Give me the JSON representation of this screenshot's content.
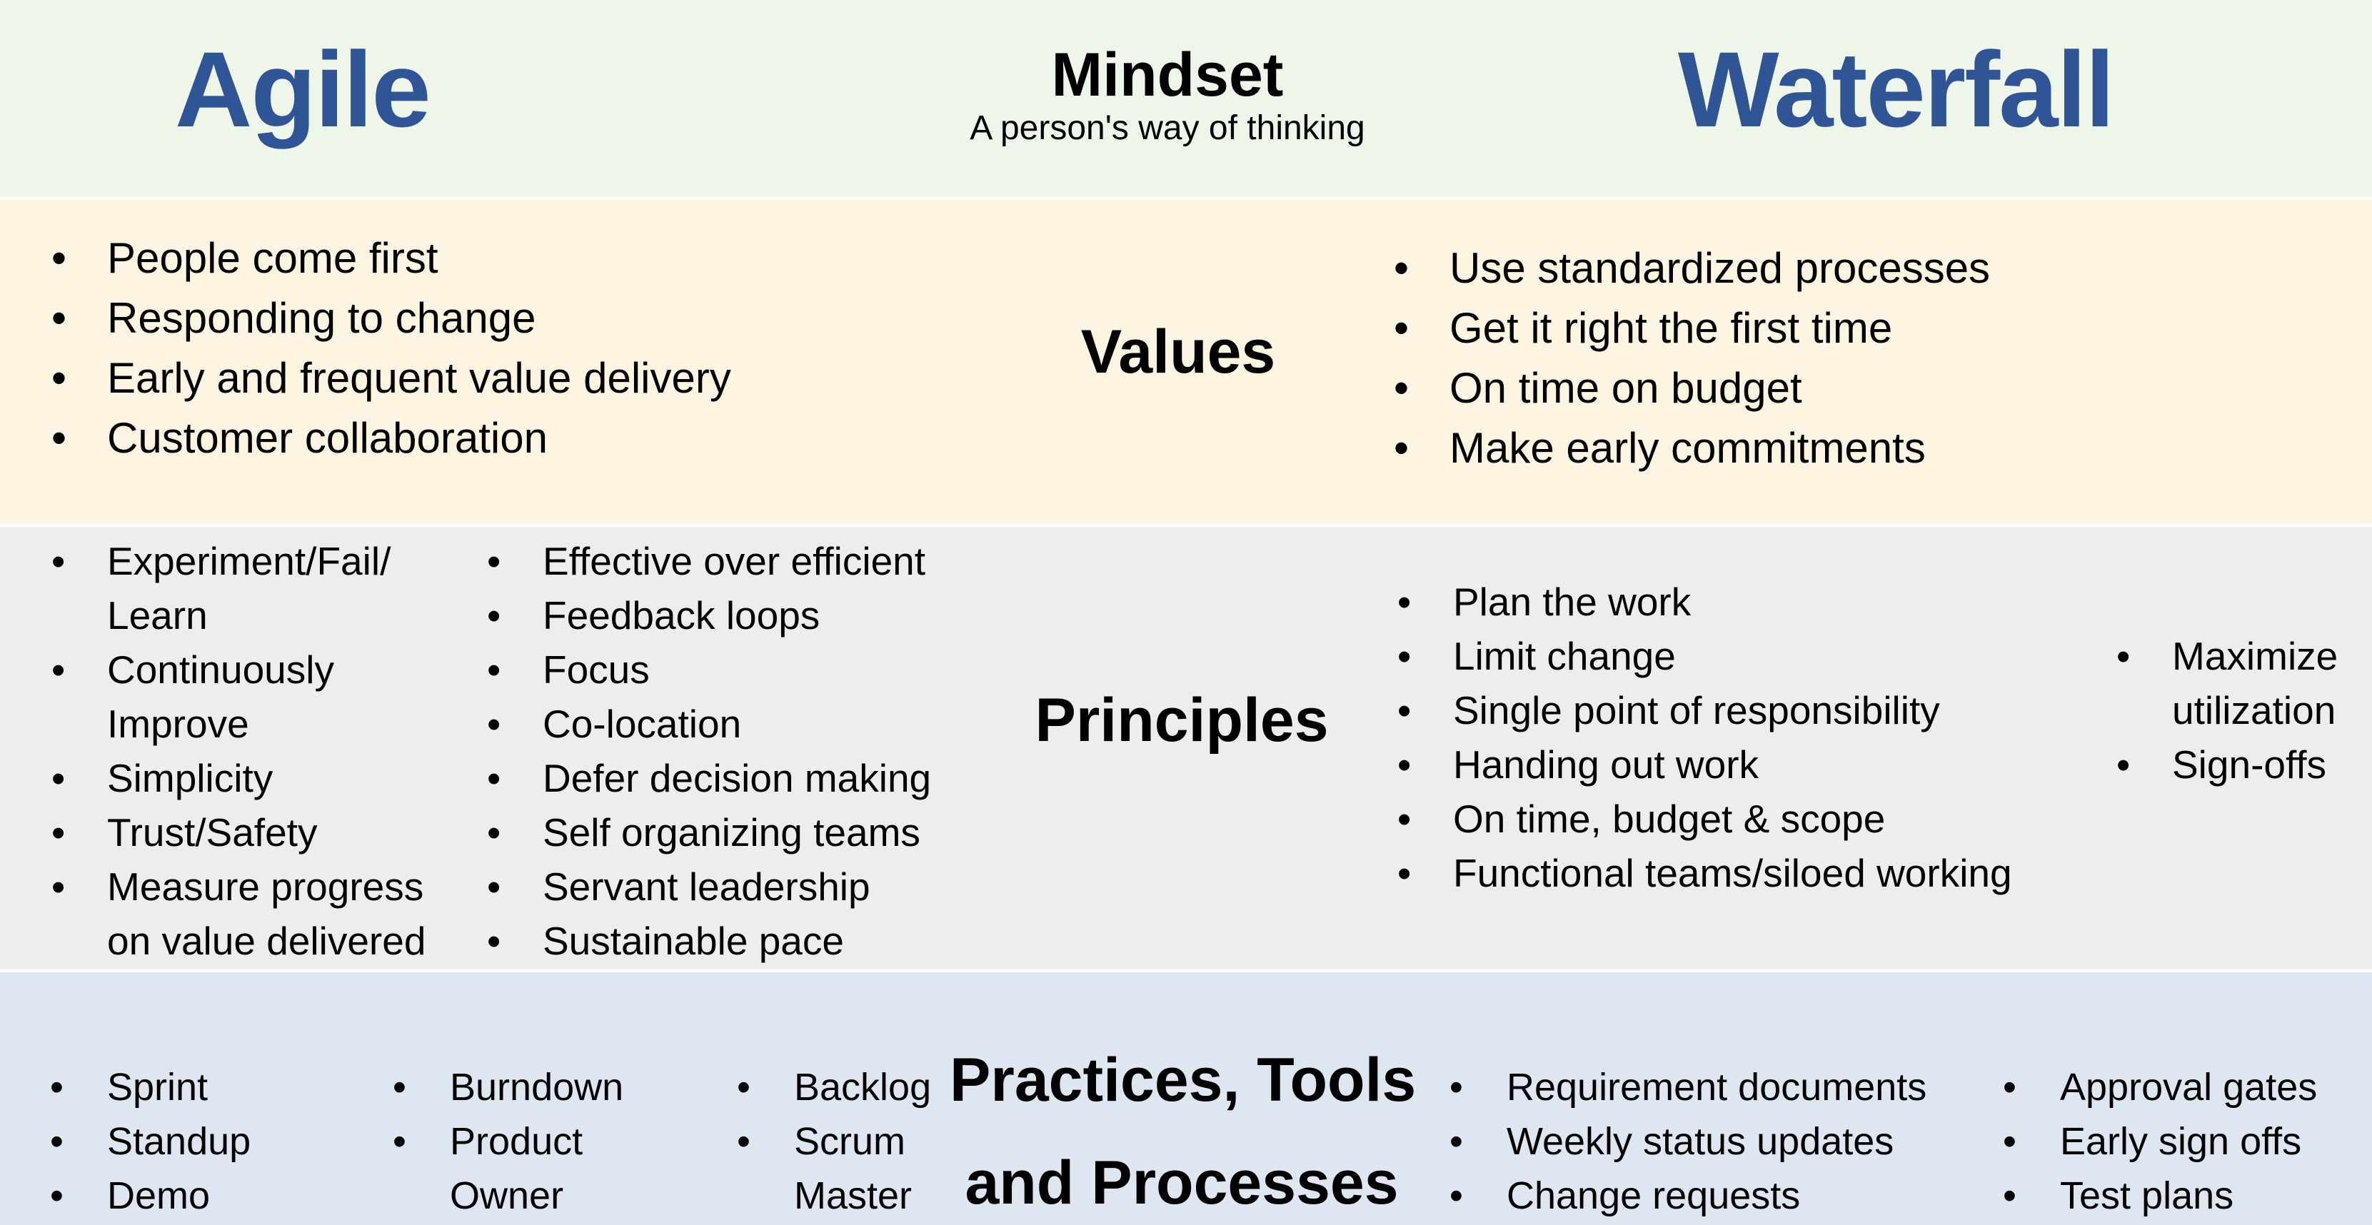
{
  "header": {
    "left_title": "Agile",
    "right_title": "Waterfall",
    "mindset": {
      "title": "Mindset",
      "subtitle": "A person's way of thinking"
    }
  },
  "rows": {
    "values": {
      "label": "Values",
      "agile": [
        "People come first",
        "Responding to change",
        "Early and frequent value delivery",
        "Customer collaboration"
      ],
      "waterfall": [
        "Use standardized processes",
        "Get it right the first time",
        "On time on budget",
        "Make early commitments"
      ]
    },
    "principles": {
      "label": "Principles",
      "agile_col1": [
        "Experiment/Fail/",
        "Learn",
        "Continuously",
        "Improve",
        "Simplicity",
        "Trust/Safety",
        "Measure progress",
        "on value delivered"
      ],
      "agile_col2": [
        "Effective over efficient",
        "Feedback loops",
        "Focus",
        "Co-location",
        "Defer decision making",
        "Self organizing teams",
        "Servant leadership",
        "Sustainable pace"
      ],
      "waterfall_col1": [
        "Plan the work",
        "Limit change",
        "Single point of responsibility",
        "Handing out work",
        "On time, budget & scope",
        "Functional teams/siloed working"
      ],
      "waterfall_col2": [
        "Maximize",
        "utilization",
        "Sign-offs"
      ]
    },
    "practices": {
      "label_line1": "Practices, Tools",
      "label_line2": "and Processes",
      "agile_col1": [
        "Sprint",
        "Standup",
        "Demo"
      ],
      "agile_col2": [
        "Burndown",
        "Product",
        "Owner"
      ],
      "agile_col3": [
        "Backlog",
        "Scrum",
        "Master"
      ],
      "waterfall_col1": [
        "Requirement documents",
        "Weekly status updates",
        "Change requests"
      ],
      "waterfall_col2": [
        "Approval gates",
        "Early sign offs",
        "Test plans"
      ]
    }
  },
  "colors": {
    "title_blue": "#2f5597",
    "mindset_band": "#eef6e9",
    "values_band": "#fdf5e1",
    "principles_band": "#ededed",
    "practices_band": "#dde6f1"
  }
}
